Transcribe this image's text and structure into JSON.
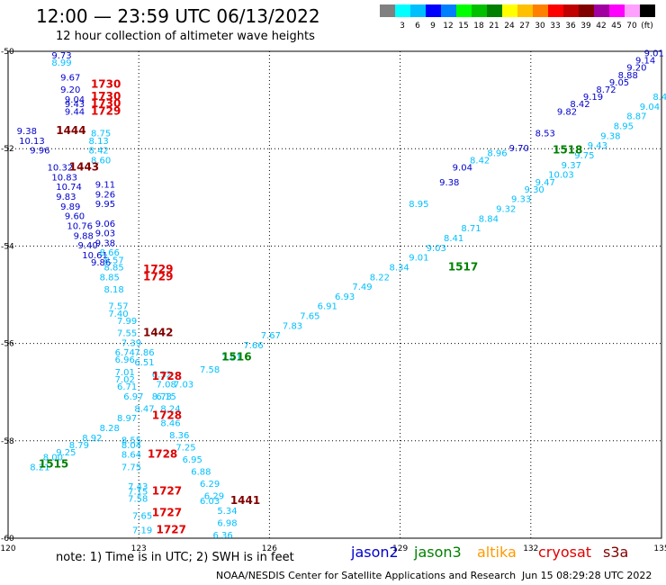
{
  "header": {
    "title": "12:00 — 23:59 UTC 06/13/2022",
    "subtitle": "12 hour collection of altimeter wave heights"
  },
  "colorbar": {
    "unit": "(ft)",
    "colors": [
      "#808080",
      "#00ffff",
      "#00bfff",
      "#0000ff",
      "#0080ff",
      "#00ff00",
      "#00c000",
      "#008000",
      "#ffff00",
      "#ffc000",
      "#ff8000",
      "#ff0000",
      "#c00000",
      "#800000",
      "#a000a0",
      "#ff00ff",
      "#ffa0ff",
      "#000000"
    ],
    "labels": [
      "3",
      "6",
      "9",
      "12",
      "15",
      "18",
      "21",
      "24",
      "27",
      "30",
      "33",
      "36",
      "39",
      "42",
      "45",
      "70"
    ]
  },
  "map": {
    "lon_range": [
      120,
      135
    ],
    "lat_range": [
      -60,
      -50
    ],
    "x_ticks": [
      "120",
      "123",
      "126",
      "129",
      "132",
      "135"
    ],
    "y_ticks": [
      "-50",
      "-52",
      "-54",
      "-56",
      "-58",
      "-60"
    ],
    "grid": true
  },
  "tracks": [
    {
      "name": "track-1515-1518",
      "color": "#00bfff",
      "points": [
        {
          "lon": 120.5,
          "lat": -58.6,
          "v": "8.21"
        },
        {
          "lon": 120.8,
          "lat": -58.4,
          "v": "8.00"
        },
        {
          "lon": 121.1,
          "lat": -58.3,
          "v": "9.25"
        },
        {
          "lon": 121.4,
          "lat": -58.15,
          "v": "8.79"
        },
        {
          "lon": 121.7,
          "lat": -58.0,
          "v": "8.92"
        },
        {
          "lon": 122.1,
          "lat": -57.8,
          "v": "8.28"
        },
        {
          "lon": 122.5,
          "lat": -57.6,
          "v": "8.97"
        },
        {
          "lon": 122.9,
          "lat": -57.4,
          "v": "8.47"
        },
        {
          "lon": 123.3,
          "lat": -57.15,
          "v": "8.73"
        },
        {
          "lon": 123.8,
          "lat": -56.9,
          "v": "7.03"
        },
        {
          "lon": 124.4,
          "lat": -56.6,
          "v": "7.58"
        },
        {
          "lon": 124.9,
          "lat": -56.35,
          "v": "7.41"
        },
        {
          "lon": 125.4,
          "lat": -56.1,
          "v": "7.66"
        },
        {
          "lon": 125.8,
          "lat": -55.9,
          "v": "7.67"
        },
        {
          "lon": 126.3,
          "lat": -55.7,
          "v": "7.83"
        },
        {
          "lon": 126.7,
          "lat": -55.5,
          "v": "7.65"
        },
        {
          "lon": 127.1,
          "lat": -55.3,
          "v": "6.91"
        },
        {
          "lon": 127.5,
          "lat": -55.1,
          "v": "6.93"
        },
        {
          "lon": 127.9,
          "lat": -54.9,
          "v": "7.49"
        },
        {
          "lon": 128.3,
          "lat": -54.7,
          "v": "8.22"
        },
        {
          "lon": 128.75,
          "lat": -54.5,
          "v": "8.34"
        },
        {
          "lon": 129.2,
          "lat": -54.3,
          "v": "9.01"
        },
        {
          "lon": 129.6,
          "lat": -54.1,
          "v": "9.03"
        },
        {
          "lon": 130.0,
          "lat": -53.9,
          "v": "8.41"
        },
        {
          "lon": 130.4,
          "lat": -53.7,
          "v": "8.71"
        },
        {
          "lon": 130.8,
          "lat": -53.5,
          "v": "8.84"
        },
        {
          "lon": 131.2,
          "lat": -53.3,
          "v": "9.32"
        },
        {
          "lon": 131.55,
          "lat": -53.1,
          "v": "9.33"
        },
        {
          "lon": 131.85,
          "lat": -52.9,
          "v": "9.30"
        },
        {
          "lon": 132.1,
          "lat": -52.75,
          "v": "9.47"
        },
        {
          "lon": 132.4,
          "lat": -52.6,
          "v": "10.03"
        },
        {
          "lon": 132.7,
          "lat": -52.4,
          "v": "9.37"
        },
        {
          "lon": 133.0,
          "lat": -52.2,
          "v": "9.75"
        },
        {
          "lon": 133.3,
          "lat": -52.0,
          "v": "9.43"
        },
        {
          "lon": 133.6,
          "lat": -51.8,
          "v": "9.38"
        },
        {
          "lon": 133.9,
          "lat": -51.6,
          "v": "8.95"
        },
        {
          "lon": 134.2,
          "lat": -51.4,
          "v": "8.87"
        },
        {
          "lon": 134.5,
          "lat": -51.2,
          "v": "9.04"
        },
        {
          "lon": 134.8,
          "lat": -51.0,
          "v": "8.42"
        }
      ]
    }
  ],
  "samples": [
    {
      "lon": 121.0,
      "lat": -50.15,
      "v": "9.73",
      "c": "#0000cc"
    },
    {
      "lon": 121.0,
      "lat": -50.3,
      "v": "8.99",
      "c": "#00bfff"
    },
    {
      "lon": 121.2,
      "lat": -50.6,
      "v": "9.67",
      "c": "#0000cc"
    },
    {
      "lon": 121.2,
      "lat": -50.85,
      "v": "9.20",
      "c": "#0000cc"
    },
    {
      "lon": 121.3,
      "lat": -51.05,
      "v": "9.04",
      "c": "#0000cc"
    },
    {
      "lon": 121.3,
      "lat": -51.15,
      "v": "9.43",
      "c": "#0000cc"
    },
    {
      "lon": 121.3,
      "lat": -51.3,
      "v": "9.44",
      "c": "#0000cc"
    },
    {
      "lon": 120.2,
      "lat": -51.7,
      "v": "9.38",
      "c": "#0000cc"
    },
    {
      "lon": 120.25,
      "lat": -51.9,
      "v": "10.13",
      "c": "#0000cc"
    },
    {
      "lon": 120.5,
      "lat": -52.1,
      "v": "9.96",
      "c": "#0000cc"
    },
    {
      "lon": 120.9,
      "lat": -52.45,
      "v": "10.32",
      "c": "#0000cc"
    },
    {
      "lon": 121.0,
      "lat": -52.65,
      "v": "10.83",
      "c": "#0000cc"
    },
    {
      "lon": 121.1,
      "lat": -52.85,
      "v": "10.74",
      "c": "#0000cc"
    },
    {
      "lon": 121.1,
      "lat": -53.05,
      "v": "9.83",
      "c": "#0000cc"
    },
    {
      "lon": 121.2,
      "lat": -53.25,
      "v": "9.89",
      "c": "#0000cc"
    },
    {
      "lon": 121.3,
      "lat": -53.45,
      "v": "9.60",
      "c": "#0000cc"
    },
    {
      "lon": 121.35,
      "lat": -53.65,
      "v": "10.76",
      "c": "#0000cc"
    },
    {
      "lon": 121.5,
      "lat": -53.85,
      "v": "9.88",
      "c": "#0000cc"
    },
    {
      "lon": 121.6,
      "lat": -54.05,
      "v": "9.40",
      "c": "#0000cc"
    },
    {
      "lon": 121.7,
      "lat": -54.25,
      "v": "10.61",
      "c": "#0000cc"
    },
    {
      "lon": 121.9,
      "lat": -54.4,
      "v": "9.86",
      "c": "#0000cc"
    },
    {
      "lon": 121.9,
      "lat": -51.75,
      "v": "8.75",
      "c": "#00bfff"
    },
    {
      "lon": 121.85,
      "lat": -51.9,
      "v": "8.13",
      "c": "#00bfff"
    },
    {
      "lon": 121.85,
      "lat": -52.1,
      "v": "8.42",
      "c": "#00bfff"
    },
    {
      "lon": 121.9,
      "lat": -52.3,
      "v": "8.60",
      "c": "#00bfff"
    },
    {
      "lon": 122.0,
      "lat": -52.8,
      "v": "9.11",
      "c": "#0000cc"
    },
    {
      "lon": 122.0,
      "lat": -53.0,
      "v": "9.26",
      "c": "#0000cc"
    },
    {
      "lon": 122.0,
      "lat": -53.2,
      "v": "9.95",
      "c": "#0000cc"
    },
    {
      "lon": 122.0,
      "lat": -53.6,
      "v": "9.06",
      "c": "#0000cc"
    },
    {
      "lon": 122.0,
      "lat": -53.8,
      "v": "9.03",
      "c": "#0000cc"
    },
    {
      "lon": 122.0,
      "lat": -54.0,
      "v": "9.38",
      "c": "#0000cc"
    },
    {
      "lon": 122.1,
      "lat": -54.2,
      "v": "8.66",
      "c": "#00bfff"
    },
    {
      "lon": 122.2,
      "lat": -54.35,
      "v": "8.57",
      "c": "#00bfff"
    },
    {
      "lon": 122.2,
      "lat": -54.5,
      "v": "8.85",
      "c": "#00bfff"
    },
    {
      "lon": 122.1,
      "lat": -54.7,
      "v": "8.85",
      "c": "#00bfff"
    },
    {
      "lon": 122.2,
      "lat": -54.95,
      "v": "8.18",
      "c": "#00bfff"
    },
    {
      "lon": 122.3,
      "lat": -55.3,
      "v": "7.57",
      "c": "#00bfff"
    },
    {
      "lon": 122.3,
      "lat": -55.45,
      "v": "7.40",
      "c": "#00bfff"
    },
    {
      "lon": 122.5,
      "lat": -55.6,
      "v": "7.99",
      "c": "#00bfff"
    },
    {
      "lon": 122.5,
      "lat": -55.85,
      "v": "7.55",
      "c": "#00bfff"
    },
    {
      "lon": 122.6,
      "lat": -56.05,
      "v": "7.39",
      "c": "#00bfff"
    },
    {
      "lon": 122.45,
      "lat": -56.25,
      "v": "6.74",
      "c": "#00bfff"
    },
    {
      "lon": 122.9,
      "lat": -56.25,
      "v": "7.86",
      "c": "#00bfff"
    },
    {
      "lon": 122.45,
      "lat": -56.4,
      "v": "6.96",
      "c": "#00bfff"
    },
    {
      "lon": 122.9,
      "lat": -56.45,
      "v": "6.51",
      "c": "#00bfff"
    },
    {
      "lon": 122.45,
      "lat": -56.65,
      "v": "7.01",
      "c": "#00bfff"
    },
    {
      "lon": 122.45,
      "lat": -56.8,
      "v": "7.02",
      "c": "#00bfff"
    },
    {
      "lon": 122.5,
      "lat": -56.95,
      "v": "6.71",
      "c": "#00bfff"
    },
    {
      "lon": 122.65,
      "lat": -57.15,
      "v": "6.97",
      "c": "#00bfff"
    },
    {
      "lon": 123.3,
      "lat": -56.7,
      "v": "6.32",
      "c": "#00bfff"
    },
    {
      "lon": 123.4,
      "lat": -56.9,
      "v": "7.08",
      "c": "#00bfff"
    },
    {
      "lon": 123.4,
      "lat": -57.15,
      "v": "6.15",
      "c": "#00bfff"
    },
    {
      "lon": 123.5,
      "lat": -57.4,
      "v": "8.24",
      "c": "#00bfff"
    },
    {
      "lon": 123.5,
      "lat": -57.7,
      "v": "8.46",
      "c": "#00bfff"
    },
    {
      "lon": 123.7,
      "lat": -57.95,
      "v": "8.36",
      "c": "#00bfff"
    },
    {
      "lon": 123.85,
      "lat": -58.2,
      "v": "7.25",
      "c": "#00bfff"
    },
    {
      "lon": 124.0,
      "lat": -58.45,
      "v": "6.95",
      "c": "#00bfff"
    },
    {
      "lon": 124.2,
      "lat": -58.7,
      "v": "6.88",
      "c": "#00bfff"
    },
    {
      "lon": 124.4,
      "lat": -58.95,
      "v": "6.29",
      "c": "#00bfff"
    },
    {
      "lon": 124.5,
      "lat": -59.2,
      "v": "6.29",
      "c": "#00bfff"
    },
    {
      "lon": 124.4,
      "lat": -59.3,
      "v": "6.03",
      "c": "#00bfff"
    },
    {
      "lon": 124.8,
      "lat": -59.5,
      "v": "5.34",
      "c": "#00bfff"
    },
    {
      "lon": 124.8,
      "lat": -59.75,
      "v": "6.98",
      "c": "#00bfff"
    },
    {
      "lon": 124.7,
      "lat": -60.0,
      "v": "6.36",
      "c": "#00bfff"
    },
    {
      "lon": 122.6,
      "lat": -58.05,
      "v": "8.55",
      "c": "#00bfff"
    },
    {
      "lon": 122.6,
      "lat": -58.15,
      "v": "8.04",
      "c": "#00bfff"
    },
    {
      "lon": 122.6,
      "lat": -58.35,
      "v": "8.64",
      "c": "#00bfff"
    },
    {
      "lon": 122.6,
      "lat": -58.6,
      "v": "7.75",
      "c": "#00bfff"
    },
    {
      "lon": 122.75,
      "lat": -59.0,
      "v": "7.43",
      "c": "#00bfff"
    },
    {
      "lon": 122.75,
      "lat": -59.1,
      "v": "7.15",
      "c": "#00bfff"
    },
    {
      "lon": 122.75,
      "lat": -59.25,
      "v": "7.58",
      "c": "#00bfff"
    },
    {
      "lon": 122.85,
      "lat": -59.6,
      "v": "7.65",
      "c": "#00bfff"
    },
    {
      "lon": 122.85,
      "lat": -59.9,
      "v": "7.19",
      "c": "#00bfff"
    },
    {
      "lon": 134.6,
      "lat": -50.1,
      "v": "9.01",
      "c": "#0000cc"
    },
    {
      "lon": 134.4,
      "lat": -50.25,
      "v": "9.14",
      "c": "#0000cc"
    },
    {
      "lon": 134.2,
      "lat": -50.4,
      "v": "9.20",
      "c": "#0000cc"
    },
    {
      "lon": 134.0,
      "lat": -50.55,
      "v": "8.88",
      "c": "#0000cc"
    },
    {
      "lon": 133.8,
      "lat": -50.7,
      "v": "9.05",
      "c": "#0000cc"
    },
    {
      "lon": 133.5,
      "lat": -50.85,
      "v": "8.72",
      "c": "#0000cc"
    },
    {
      "lon": 133.2,
      "lat": -51.0,
      "v": "9.19",
      "c": "#0000cc"
    },
    {
      "lon": 132.9,
      "lat": -51.15,
      "v": "8.42",
      "c": "#0000cc"
    },
    {
      "lon": 132.6,
      "lat": -51.3,
      "v": "9.82",
      "c": "#0000cc"
    },
    {
      "lon": 132.1,
      "lat": -51.75,
      "v": "8.53",
      "c": "#0000cc"
    },
    {
      "lon": 131.5,
      "lat": -52.05,
      "v": "9.70",
      "c": "#0000cc"
    },
    {
      "lon": 131.0,
      "lat": -52.15,
      "v": "8.96",
      "c": "#00bfff"
    },
    {
      "lon": 130.6,
      "lat": -52.3,
      "v": "8.42",
      "c": "#00bfff"
    },
    {
      "lon": 130.2,
      "lat": -52.45,
      "v": "9.04",
      "c": "#0000cc"
    },
    {
      "lon": 129.9,
      "lat": -52.75,
      "v": "9.38",
      "c": "#0000cc"
    },
    {
      "lon": 129.2,
      "lat": -53.2,
      "v": "8.95",
      "c": "#00bfff"
    }
  ],
  "times": [
    {
      "lon": 121.9,
      "lat": -50.75,
      "v": "1730",
      "c": "#e00000"
    },
    {
      "lon": 121.9,
      "lat": -51.0,
      "v": "1730",
      "c": "#e00000"
    },
    {
      "lon": 121.9,
      "lat": -51.15,
      "v": "1730",
      "c": "#e00000"
    },
    {
      "lon": 121.9,
      "lat": -51.3,
      "v": "1729",
      "c": "#e00000"
    },
    {
      "lon": 121.1,
      "lat": -51.7,
      "v": "1444",
      "c": "#800000"
    },
    {
      "lon": 121.4,
      "lat": -52.45,
      "v": "1443",
      "c": "#800000"
    },
    {
      "lon": 123.1,
      "lat": -54.55,
      "v": "1729",
      "c": "#e00000"
    },
    {
      "lon": 123.1,
      "lat": -54.7,
      "v": "1729",
      "c": "#e00000"
    },
    {
      "lon": 123.1,
      "lat": -55.85,
      "v": "1442",
      "c": "#800000"
    },
    {
      "lon": 123.3,
      "lat": -56.75,
      "v": "1728",
      "c": "#e00000"
    },
    {
      "lon": 123.3,
      "lat": -57.55,
      "v": "1728",
      "c": "#e00000"
    },
    {
      "lon": 123.2,
      "lat": -58.35,
      "v": "1728",
      "c": "#e00000"
    },
    {
      "lon": 123.3,
      "lat": -59.1,
      "v": "1727",
      "c": "#e00000"
    },
    {
      "lon": 123.3,
      "lat": -59.55,
      "v": "1727",
      "c": "#e00000"
    },
    {
      "lon": 123.4,
      "lat": -59.9,
      "v": "1727",
      "c": "#e00000"
    },
    {
      "lon": 125.1,
      "lat": -59.3,
      "v": "1441",
      "c": "#800000"
    },
    {
      "lon": 120.7,
      "lat": -58.55,
      "v": "1515",
      "c": "#008000"
    },
    {
      "lon": 124.9,
      "lat": -56.35,
      "v": "1516",
      "c": "#008000"
    },
    {
      "lon": 130.1,
      "lat": -54.5,
      "v": "1517",
      "c": "#008000"
    },
    {
      "lon": 132.5,
      "lat": -52.1,
      "v": "1518",
      "c": "#008000"
    }
  ],
  "legend": {
    "note": "note: 1) Time is in UTC; 2) SWH is in feet",
    "satellites": [
      {
        "name": "jason2",
        "color": "#0000cc"
      },
      {
        "name": "jason3",
        "color": "#008000"
      },
      {
        "name": "altika",
        "color": "#ff9900"
      },
      {
        "name": "cryosat",
        "color": "#e00000"
      },
      {
        "name": "s3a",
        "color": "#800000"
      }
    ]
  },
  "footer": {
    "org": "NOAA/NESDIS Center for Satellite Applications and Research",
    "date": "Jun 15 08:29:28 UTC 2022"
  }
}
